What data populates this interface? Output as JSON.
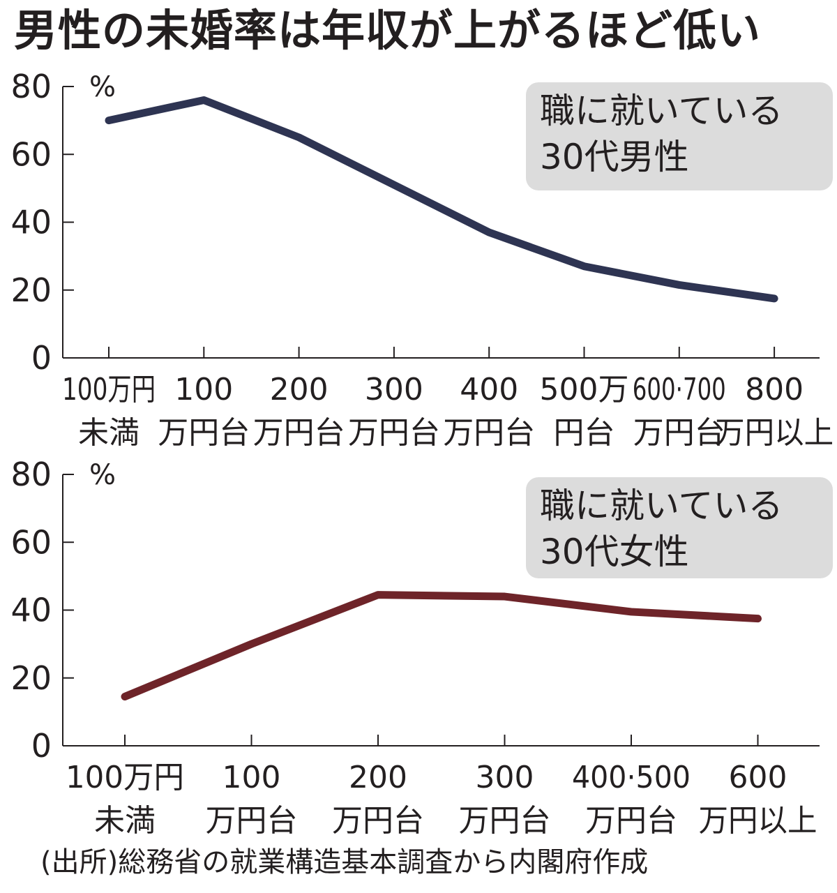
{
  "title": "男性の未婚率は年収が上がるほど低い",
  "source": "(出所)総務省の就業構造基本調査から内閣府作成",
  "colors": {
    "male": "#2e3452",
    "female": "#6e2429",
    "label_box": "#dcdcdc",
    "axis": "#231f20"
  },
  "chart_data": [
    {
      "type": "line",
      "label_lines": [
        "職に就いている",
        "30代男性"
      ],
      "ylabel": "%",
      "ylim": [
        0,
        80
      ],
      "yticks": [
        "0",
        "20",
        "40",
        "60",
        "80"
      ],
      "categories": [
        [
          "100万円",
          "未満"
        ],
        [
          "100",
          "万円台"
        ],
        [
          "200",
          "万円台"
        ],
        [
          "300",
          "万円台"
        ],
        [
          "400",
          "万円台"
        ],
        [
          "500万",
          "円台"
        ],
        [
          "600·700",
          "万円台"
        ],
        [
          "800",
          "万円以上"
        ]
      ],
      "series": [
        {
          "values": [
            70,
            76,
            65,
            51,
            37,
            27,
            21.5,
            17.5
          ]
        }
      ],
      "grid": false
    },
    {
      "type": "line",
      "label_lines": [
        "職に就いている",
        "30代女性"
      ],
      "ylabel": "%",
      "ylim": [
        0,
        80
      ],
      "yticks": [
        "0",
        "20",
        "40",
        "60",
        "80"
      ],
      "categories": [
        [
          "100万円",
          "未満"
        ],
        [
          "100",
          "万円台"
        ],
        [
          "200",
          "万円台"
        ],
        [
          "300",
          "万円台"
        ],
        [
          "400·500",
          "万円台"
        ],
        [
          "600",
          "万円以上"
        ]
      ],
      "series": [
        {
          "values": [
            14.5,
            30,
            44.5,
            44,
            39.5,
            37.5
          ]
        }
      ],
      "grid": false
    }
  ]
}
